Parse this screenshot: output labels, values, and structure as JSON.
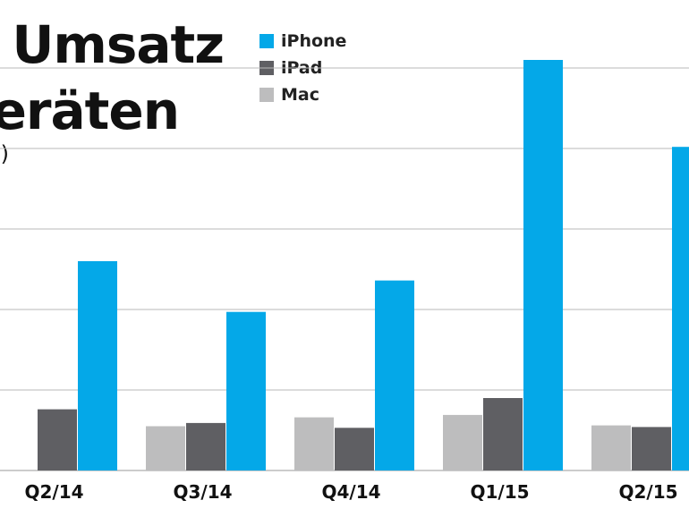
{
  "chart_data": {
    "type": "bar",
    "title_lines": [
      "Umsatz",
      "eräten"
    ],
    "subtitle": ")",
    "categories": [
      "Q2/14",
      "Q3/14",
      "Q4/14",
      "Q1/15",
      "Q2/15"
    ],
    "series": [
      {
        "name": "Mac",
        "color": "#bdbdbe",
        "values": [
          null,
          55,
          66,
          69,
          56
        ]
      },
      {
        "name": "iPad",
        "color": "#5f5f63",
        "values": [
          76,
          59,
          53,
          90,
          54
        ]
      },
      {
        "name": "iPhone",
        "color": "#04a8e8",
        "values": [
          260,
          197,
          236,
          510,
          402
        ]
      }
    ],
    "legend_order": [
      "iPhone",
      "iPad",
      "Mac"
    ],
    "ylim": [
      0,
      560
    ],
    "gridlines": [
      100,
      200,
      300,
      400,
      500
    ],
    "grid": true,
    "legend_position": "top-left"
  }
}
